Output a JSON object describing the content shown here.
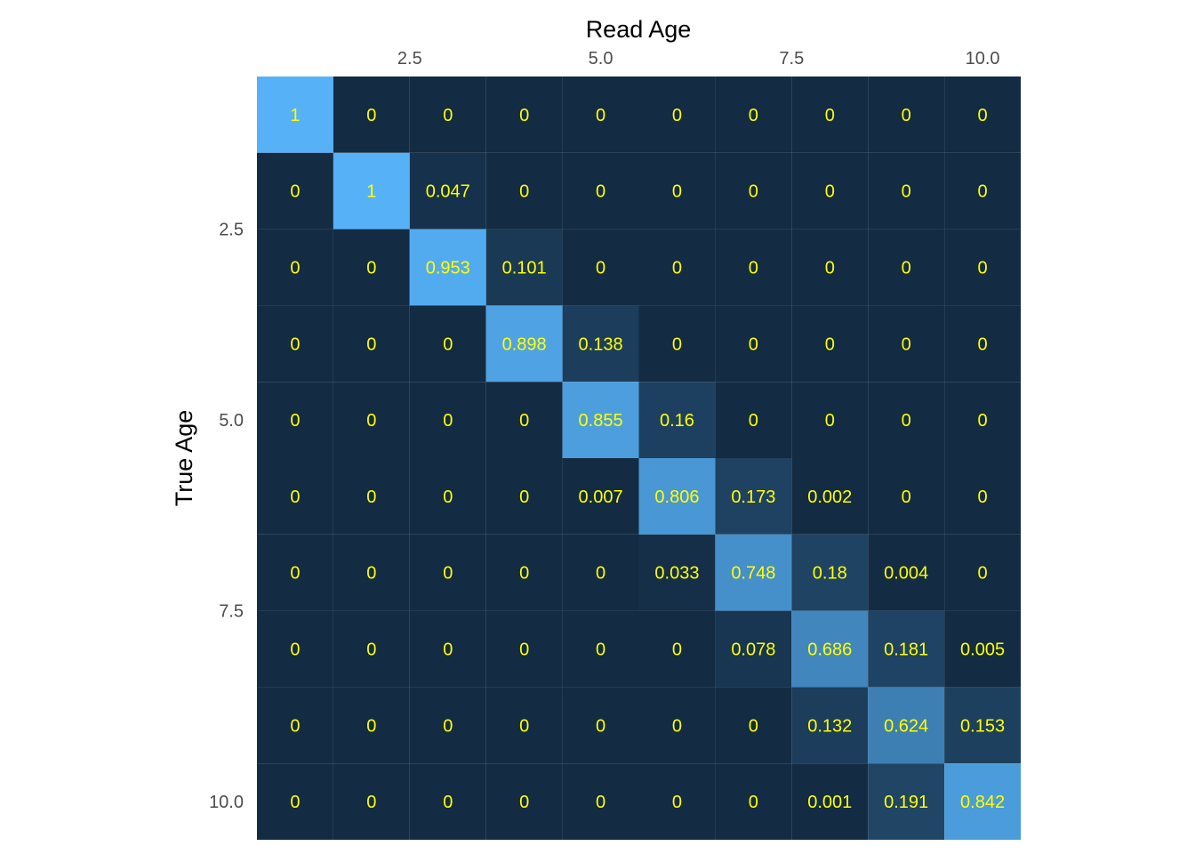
{
  "chart_data": {
    "type": "heatmap",
    "title": "",
    "xlabel": "Read Age",
    "ylabel": "True Age",
    "x_axis_position": "top",
    "y_axis_reversed": true,
    "grid": false,
    "legend": "none",
    "x_values": [
      1,
      2,
      3,
      4,
      5,
      6,
      7,
      8,
      9,
      10
    ],
    "y_values": [
      1,
      2,
      3,
      4,
      5,
      6,
      7,
      8,
      9,
      10
    ],
    "xlim": [
      0.5,
      10.5
    ],
    "ylim": [
      0.5,
      10.5
    ],
    "x_ticks": [
      2.5,
      5.0,
      7.5,
      10.0
    ],
    "x_tick_labels": [
      "2.5",
      "5.0",
      "7.5",
      "10.0"
    ],
    "y_ticks": [
      2.5,
      5.0,
      7.5,
      10.0
    ],
    "y_tick_labels": [
      "2.5",
      "5.0",
      "7.5",
      "10.0"
    ],
    "values": [
      [
        1,
        0,
        0,
        0,
        0,
        0,
        0,
        0,
        0,
        0
      ],
      [
        0,
        1,
        0.047,
        0,
        0,
        0,
        0,
        0,
        0,
        0
      ],
      [
        0,
        0,
        0.953,
        0.101,
        0,
        0,
        0,
        0,
        0,
        0
      ],
      [
        0,
        0,
        0,
        0.898,
        0.138,
        0,
        0,
        0,
        0,
        0
      ],
      [
        0,
        0,
        0,
        0,
        0.855,
        0.16,
        0,
        0,
        0,
        0
      ],
      [
        0,
        0,
        0,
        0,
        0.007,
        0.806,
        0.173,
        0.002,
        0,
        0
      ],
      [
        0,
        0,
        0,
        0,
        0,
        0.033,
        0.748,
        0.18,
        0.004,
        0
      ],
      [
        0,
        0,
        0,
        0,
        0,
        0,
        0.078,
        0.686,
        0.181,
        0.005
      ],
      [
        0,
        0,
        0,
        0,
        0,
        0,
        0,
        0.132,
        0.624,
        0.153
      ],
      [
        0,
        0,
        0,
        0,
        0,
        0,
        0,
        0.001,
        0.191,
        0.842
      ]
    ],
    "colors": {
      "low": "#132B43",
      "high": "#56B1F7",
      "cell_text": "#ffff00",
      "tick_text": "#4d4d4d",
      "axis_title": "#000000",
      "background": "#ffffff"
    }
  }
}
